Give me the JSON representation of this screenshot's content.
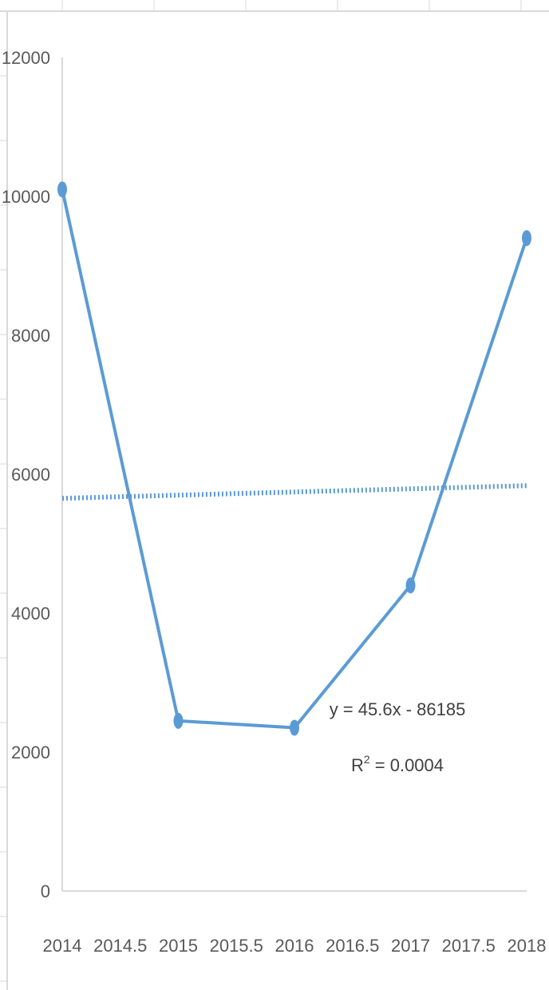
{
  "colors": {
    "series": "#5b9bd5",
    "trendline": "#5b9bd5",
    "axis": "#d9d9d9",
    "gridline": "#d9d9d9",
    "text": "#595959"
  },
  "chart_data": {
    "type": "scatter",
    "title": "",
    "xlabel": "",
    "ylabel": "",
    "xlim": [
      2014,
      2018
    ],
    "ylim": [
      0,
      12000
    ],
    "grid": false,
    "legend": "none",
    "x_ticks": [
      "2014",
      "2014.5",
      "2015",
      "2015.5",
      "2016",
      "2016.5",
      "2017",
      "2017.5",
      "2018"
    ],
    "y_ticks": [
      "0",
      "2000",
      "4000",
      "6000",
      "8000",
      "10000",
      "12000"
    ],
    "series": [
      {
        "x": [
          2014,
          2015,
          2016,
          2017,
          2018
        ],
        "y": [
          10100,
          2450,
          2350,
          4400,
          9400
        ],
        "markers": true,
        "line": "straight"
      }
    ],
    "trendline": {
      "type": "linear",
      "style": "dotted",
      "equation": "y = 45.6x - 86185",
      "r_squared_base": "R",
      "r_squared_sup": "2",
      "r_squared_value": " = 0.0004"
    }
  }
}
